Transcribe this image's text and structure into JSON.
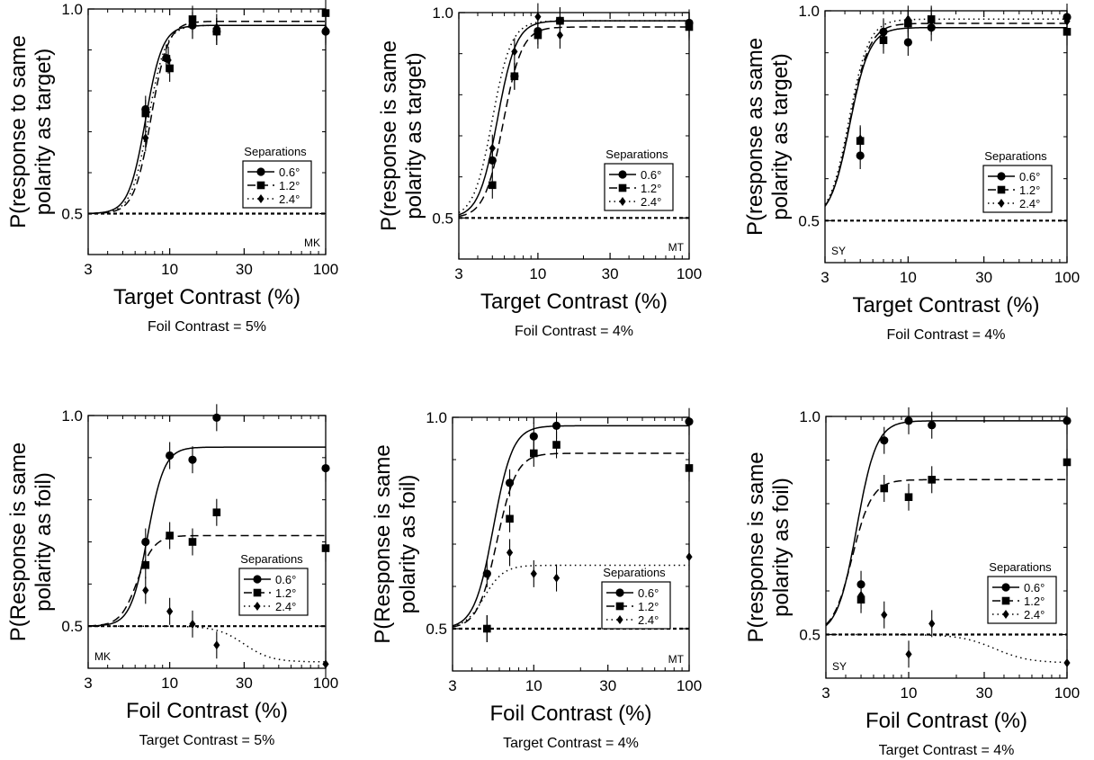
{
  "figure": {
    "y_ticks": [
      "1.0",
      "0.5"
    ],
    "x_ticks": [
      "3",
      "10",
      "30",
      "100"
    ],
    "legend_title": "Separations",
    "legend_labels": [
      "0.6°",
      "1.2°",
      "2.4°"
    ]
  },
  "chart_data": [
    {
      "type": "scatter",
      "subject": "MK",
      "ylabel": [
        "P(response to same",
        "polarity as target)"
      ],
      "xlabel": "Target Contrast (%)",
      "caption": "Foil Contrast = 5%",
      "xlim": [
        3,
        100
      ],
      "ylim": [
        0.4,
        1.0
      ],
      "xscale": "log",
      "legend_placement": "right",
      "series": [
        {
          "name": "0.6°",
          "x": [
            7,
            9.5,
            14,
            20,
            100
          ],
          "y": [
            0.755,
            0.88,
            0.96,
            0.945,
            0.945
          ],
          "fit": {
            "base": 0.5,
            "max": 0.96,
            "mid": 7.0,
            "slope": 8
          }
        },
        {
          "name": "1.2°",
          "x": [
            7,
            10,
            14,
            20,
            100
          ],
          "y": [
            0.745,
            0.855,
            0.975,
            0.945,
            0.99
          ],
          "fit": {
            "base": 0.5,
            "max": 0.97,
            "mid": 7.6,
            "slope": 8
          }
        },
        {
          "name": "2.4°",
          "x": [
            7,
            9.8,
            14,
            20,
            100
          ],
          "y": [
            0.685,
            0.875,
            0.96,
            0.955,
            0.95
          ],
          "fit": {
            "base": 0.5,
            "max": 0.96,
            "mid": 7.3,
            "slope": 8
          }
        }
      ]
    },
    {
      "type": "scatter",
      "subject": "MT",
      "ylabel": [
        "P(response is same",
        "polarity as target)"
      ],
      "xlabel": "Target Contrast (%)",
      "caption": "Foil Contrast = 4%",
      "xlim": [
        3,
        100
      ],
      "ylim": [
        0.4,
        1.0
      ],
      "xscale": "log",
      "legend_placement": "right",
      "series": [
        {
          "name": "0.6°",
          "x": [
            5,
            7,
            10,
            14,
            100
          ],
          "y": [
            0.64,
            0.845,
            0.955,
            0.98,
            0.975
          ],
          "fit": {
            "base": 0.5,
            "max": 0.98,
            "mid": 5.4,
            "slope": 7
          }
        },
        {
          "name": "1.2°",
          "x": [
            5,
            7,
            10,
            14,
            100
          ],
          "y": [
            0.58,
            0.845,
            0.945,
            0.98,
            0.965
          ],
          "fit": {
            "base": 0.5,
            "max": 0.965,
            "mid": 5.9,
            "slope": 7
          }
        },
        {
          "name": "2.4°",
          "x": [
            5,
            7,
            10,
            14,
            100
          ],
          "y": [
            0.67,
            0.905,
            0.99,
            0.945,
            0.97
          ],
          "fit": {
            "base": 0.5,
            "max": 0.98,
            "mid": 5.0,
            "slope": 7
          }
        }
      ]
    },
    {
      "type": "scatter",
      "subject": "SY",
      "ylabel": [
        "P(response as same",
        "polarity as target)"
      ],
      "xlabel": "Target Contrast (%)",
      "caption": "Foil Contrast = 4%",
      "xlim": [
        3,
        100
      ],
      "ylim": [
        0.4,
        1.0
      ],
      "xscale": "log",
      "legend_placement": "right",
      "series": [
        {
          "name": "0.6°",
          "x": [
            5,
            7,
            10,
            14,
            100
          ],
          "y": [
            0.655,
            0.95,
            0.925,
            0.96,
            0.985
          ],
          "fit": {
            "base": 0.5,
            "max": 0.96,
            "mid": 4.3,
            "slope": 7
          }
        },
        {
          "name": "1.2°",
          "x": [
            5,
            7,
            10,
            14,
            100
          ],
          "y": [
            0.69,
            0.93,
            0.97,
            0.98,
            0.95
          ],
          "fit": {
            "base": 0.5,
            "max": 0.97,
            "mid": 4.3,
            "slope": 7
          }
        },
        {
          "name": "2.4°",
          "x": [
            5,
            7,
            10,
            14,
            100
          ],
          "y": [
            0.695,
            0.945,
            0.98,
            0.975,
            0.975
          ],
          "fit": {
            "base": 0.5,
            "max": 0.98,
            "mid": 4.25,
            "slope": 7
          }
        }
      ]
    },
    {
      "type": "scatter",
      "subject": "MK",
      "ylabel": [
        "P(Response is same",
        "polarity as foil)"
      ],
      "xlabel": "Foil Contrast (%)",
      "caption": "Target Contrast = 5%",
      "xlim": [
        3,
        100
      ],
      "ylim": [
        0.4,
        1.0
      ],
      "xscale": "log",
      "legend_placement": "right",
      "series": [
        {
          "name": "0.6°",
          "x": [
            7,
            10,
            14,
            20,
            100
          ],
          "y": [
            0.7,
            0.905,
            0.895,
            0.995,
            0.875
          ],
          "fit": {
            "base": 0.5,
            "max": 0.925,
            "mid": 7.2,
            "slope": 8
          }
        },
        {
          "name": "1.2°",
          "x": [
            7,
            10,
            14,
            20,
            100
          ],
          "y": [
            0.645,
            0.715,
            0.7,
            0.77,
            0.685
          ],
          "fit": {
            "base": 0.5,
            "max": 0.715,
            "mid": 6.2,
            "slope": 8
          }
        },
        {
          "name": "2.4°",
          "x": [
            7,
            10,
            14,
            20,
            100
          ],
          "y": [
            0.585,
            0.535,
            0.505,
            0.455,
            0.41
          ],
          "fit": {
            "base": 0.5,
            "min": 0.415,
            "mid": 30,
            "slope": 5,
            "decreasing": true
          }
        }
      ]
    },
    {
      "type": "scatter",
      "subject": "MT",
      "ylabel": [
        "P(Response is same",
        "polarity as foil)"
      ],
      "xlabel": "Foil Contrast (%)",
      "caption": "Target Contrast = 4%",
      "xlim": [
        3,
        100
      ],
      "ylim": [
        0.4,
        1.0
      ],
      "xscale": "log",
      "legend_placement": "right",
      "series": [
        {
          "name": "0.6°",
          "x": [
            5,
            7,
            10,
            14,
            100
          ],
          "y": [
            0.63,
            0.845,
            0.955,
            0.98,
            0.99
          ],
          "fit": {
            "base": 0.5,
            "max": 0.98,
            "mid": 5.5,
            "slope": 7
          }
        },
        {
          "name": "1.2°",
          "x": [
            5,
            7,
            10,
            14,
            100
          ],
          "y": [
            0.5,
            0.76,
            0.915,
            0.935,
            0.88
          ],
          "fit": {
            "base": 0.5,
            "max": 0.915,
            "mid": 5.8,
            "slope": 7
          }
        },
        {
          "name": "2.4°",
          "x": [
            5,
            7,
            10,
            14,
            100
          ],
          "y": [
            0.5,
            0.68,
            0.63,
            0.62,
            0.67
          ],
          "fit": {
            "base": 0.5,
            "max": 0.65,
            "mid": 4.8,
            "slope": 7
          }
        }
      ]
    },
    {
      "type": "scatter",
      "subject": "SY",
      "ylabel": [
        "P(response is same",
        "polarity as foil)"
      ],
      "xlabel": "Foil Contrast (%)",
      "caption": "Target Contrast = 4%",
      "xlim": [
        3,
        100
      ],
      "ylim": [
        0.4,
        1.0
      ],
      "xscale": "log",
      "legend_placement": "right",
      "series": [
        {
          "name": "0.6°",
          "x": [
            5,
            7,
            10,
            14,
            100
          ],
          "y": [
            0.615,
            0.945,
            0.99,
            0.98,
            0.99
          ],
          "fit": {
            "base": 0.5,
            "max": 0.99,
            "mid": 4.7,
            "slope": 7
          }
        },
        {
          "name": "1.2°",
          "x": [
            5,
            7,
            10,
            14,
            100
          ],
          "y": [
            0.58,
            0.835,
            0.815,
            0.855,
            0.895
          ],
          "fit": {
            "base": 0.5,
            "max": 0.855,
            "mid": 4.4,
            "slope": 7
          }
        },
        {
          "name": "2.4°",
          "x": [
            5,
            7,
            10,
            14,
            100
          ],
          "y": [
            0.59,
            0.545,
            0.455,
            0.525,
            0.435
          ],
          "fit": {
            "base": 0.5,
            "min": 0.435,
            "mid": 35,
            "slope": 4,
            "decreasing": true
          }
        }
      ]
    }
  ]
}
